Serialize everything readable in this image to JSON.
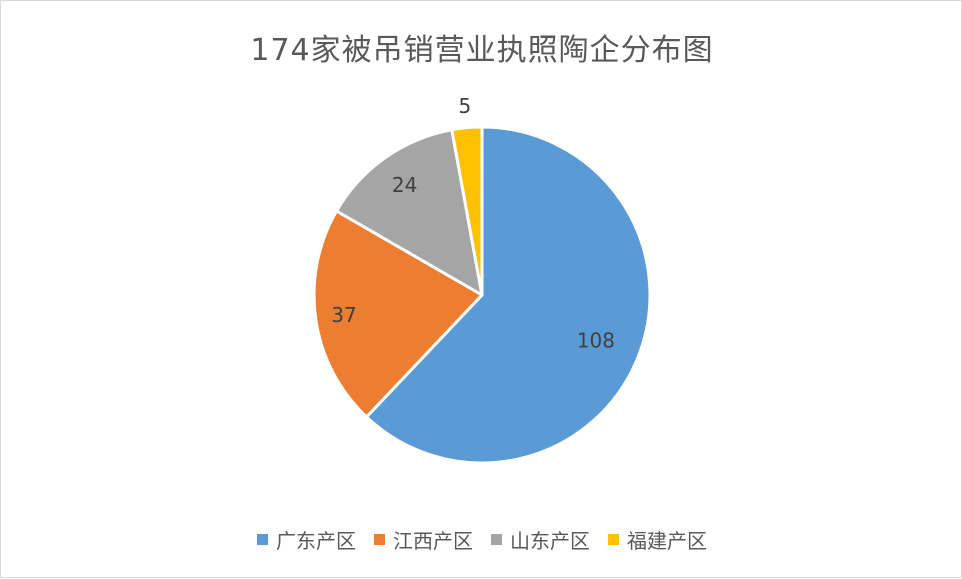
{
  "chart_data": {
    "type": "pie",
    "title": "174家被吊销营业执照陶企分布图",
    "categories": [
      "广东产区",
      "江西产区",
      "山东产区",
      "福建产区"
    ],
    "values": [
      108,
      37,
      24,
      5
    ],
    "colors": [
      "#5B9BD5",
      "#ED7D31",
      "#A5A5A5",
      "#FFC000"
    ],
    "data_labels": [
      "108",
      "37",
      "24",
      "5"
    ],
    "legend_position": "bottom"
  }
}
